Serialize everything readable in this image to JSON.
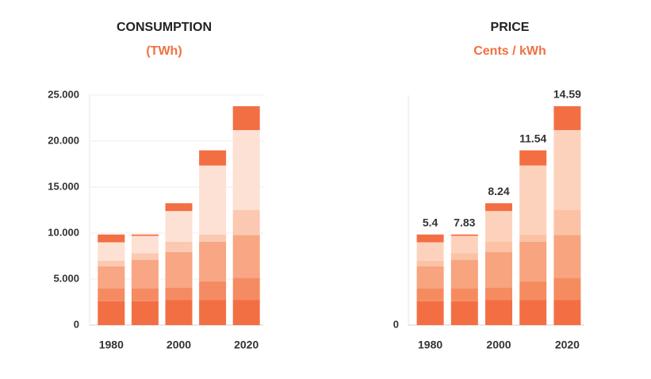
{
  "chart_data": [
    {
      "type": "stacked_bar",
      "title": "CONSUMPTION",
      "subtitle": "(TWh)",
      "categories": [
        "1980",
        null,
        "2000",
        null,
        "2020"
      ],
      "series": [
        {
          "color": "#f26f43",
          "values": [
            2600,
            2600,
            2750,
            2750,
            2750
          ]
        },
        {
          "color": "#f58b62",
          "values": [
            1400,
            1400,
            1300,
            2000,
            2400
          ]
        },
        {
          "color": "#f8a683",
          "values": [
            2400,
            3100,
            3900,
            4300,
            4650
          ]
        },
        {
          "color": "#fbc9b1",
          "values": [
            600,
            700,
            1100,
            800,
            2700
          ]
        },
        {
          "color": "#fde1d4",
          "values": [
            2000,
            1900,
            3350,
            7500,
            8700
          ]
        },
        {
          "color": "#f26f43",
          "values": [
            850,
            150,
            850,
            1650,
            2600
          ]
        }
      ],
      "ylim": [
        0,
        25000
      ],
      "yticks": [
        0,
        {
          "value": 5000,
          "label": "5.000"
        },
        {
          "value": 10000,
          "label": "10.000"
        },
        {
          "value": 15000,
          "label": "15.000"
        },
        {
          "value": 20000,
          "label": "20.000"
        },
        {
          "value": 25000,
          "label": "25.000"
        }
      ]
    },
    {
      "type": "stacked_bar",
      "title": "PRICE",
      "subtitle": "Cents / kWh",
      "categories": [
        "1980",
        null,
        "2000",
        null,
        "2020"
      ],
      "series": [
        {
          "color": "#f36f43",
          "values": [
            2600,
            2600,
            2750,
            2750,
            2750
          ]
        },
        {
          "color": "#f58c60",
          "values": [
            1400,
            1400,
            1300,
            2000,
            2400
          ]
        },
        {
          "color": "#f7a47f",
          "values": [
            2400,
            3100,
            3900,
            4300,
            4650
          ]
        },
        {
          "color": "#fbc2a5",
          "values": [
            600,
            700,
            1100,
            800,
            2700
          ]
        },
        {
          "color": "#fdd2bd",
          "values": [
            2000,
            1900,
            3350,
            7500,
            8700
          ]
        },
        {
          "color": "#f36f43",
          "values": [
            850,
            150,
            850,
            1650,
            2600
          ]
        }
      ],
      "annotations": [
        "5.4",
        "7.83",
        "8.24",
        "11.54",
        "14.59"
      ],
      "ylim": [
        0,
        25000
      ],
      "yticks": [
        0
      ]
    }
  ]
}
